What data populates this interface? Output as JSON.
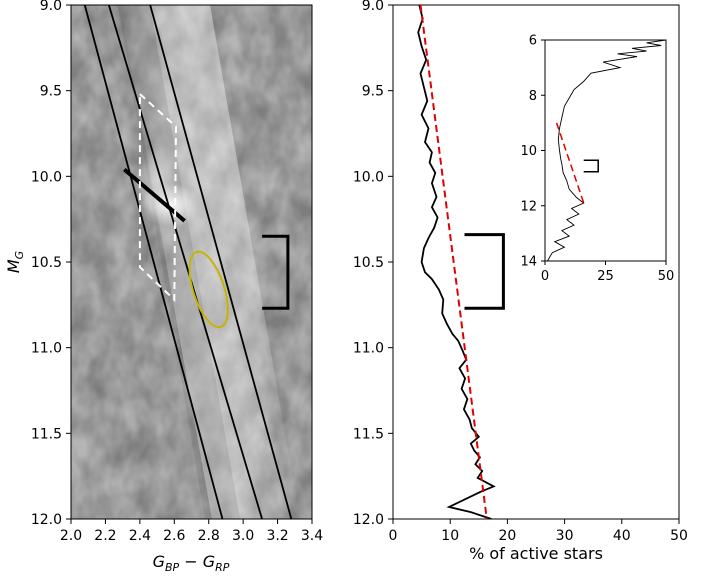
{
  "chart_data": [
    {
      "type": "image",
      "panel": "left",
      "xlabel": "G_BP − G_RP",
      "ylabel": "M_G",
      "xlim": [
        2.0,
        3.4
      ],
      "ylim": [
        12.0,
        9.0
      ],
      "xticks": [
        "2.0",
        "2.2",
        "2.4",
        "2.6",
        "2.8",
        "3.0",
        "3.2",
        "3.4"
      ],
      "yticks": [
        "9.0",
        "9.5",
        "10.0",
        "10.5",
        "11.0",
        "11.5",
        "12.0"
      ],
      "sequence_lines": [
        {
          "x0": 2.08,
          "y0": 9.0,
          "x1": 2.88,
          "y1": 12.0
        },
        {
          "x0": 2.22,
          "y0": 9.0,
          "x1": 3.11,
          "y1": 12.0
        },
        {
          "x0": 2.46,
          "y0": 9.0,
          "x1": 3.28,
          "y1": 12.0
        }
      ],
      "black_segment": {
        "x0": 2.31,
        "y0": 9.96,
        "x1": 2.66,
        "y1": 10.26
      },
      "dashed_region": [
        [
          2.4,
          9.52
        ],
        [
          2.61,
          9.71
        ],
        [
          2.6,
          10.72
        ],
        [
          2.4,
          10.53
        ]
      ],
      "ellipse": {
        "cx": 2.8,
        "cy": 10.66,
        "rx": 0.09,
        "ry": 0.23,
        "tilt_deg": -18,
        "color": "#c8b400"
      },
      "bracket": {
        "x_left": 3.11,
        "x_right": 3.26,
        "y_top": 10.35,
        "y_bottom": 10.77
      }
    },
    {
      "type": "line",
      "panel": "middle",
      "xlabel": "% of active stars",
      "ylabel": "",
      "xlim": [
        0,
        50
      ],
      "ylim": [
        12.0,
        9.0
      ],
      "xticks": [
        "0",
        "10",
        "20",
        "30",
        "40",
        "50"
      ],
      "yticks": [
        "9.0",
        "9.5",
        "10.0",
        "10.5",
        "11.0",
        "11.5",
        "12.0"
      ],
      "series": [
        {
          "color": "#000000",
          "points": [
            [
              4.6,
              9.0
            ],
            [
              5.2,
              9.08
            ],
            [
              4.4,
              9.16
            ],
            [
              5.0,
              9.24
            ],
            [
              5.8,
              9.32
            ],
            [
              4.8,
              9.4
            ],
            [
              5.4,
              9.48
            ],
            [
              6.0,
              9.56
            ],
            [
              5.0,
              9.64
            ],
            [
              6.2,
              9.72
            ],
            [
              5.6,
              9.8
            ],
            [
              6.8,
              9.86
            ],
            [
              6.4,
              9.92
            ],
            [
              7.4,
              9.98
            ],
            [
              6.8,
              10.04
            ],
            [
              7.6,
              10.12
            ],
            [
              6.8,
              10.18
            ],
            [
              7.8,
              10.24
            ],
            [
              7.2,
              10.3
            ],
            [
              6.2,
              10.36
            ],
            [
              5.4,
              10.42
            ],
            [
              5.0,
              10.5
            ],
            [
              5.6,
              10.56
            ],
            [
              6.8,
              10.6
            ],
            [
              8.0,
              10.66
            ],
            [
              8.8,
              10.72
            ],
            [
              8.6,
              10.8
            ],
            [
              9.4,
              10.86
            ],
            [
              10.4,
              10.92
            ],
            [
              11.4,
              10.96
            ],
            [
              12.2,
              11.02
            ],
            [
              12.8,
              11.07
            ],
            [
              11.6,
              11.12
            ],
            [
              12.6,
              11.18
            ],
            [
              12.0,
              11.24
            ],
            [
              13.0,
              11.3
            ],
            [
              12.4,
              11.36
            ],
            [
              13.4,
              11.42
            ],
            [
              13.8,
              11.47
            ],
            [
              15.0,
              11.52
            ],
            [
              13.6,
              11.56
            ],
            [
              14.2,
              11.6
            ],
            [
              15.2,
              11.64
            ],
            [
              14.4,
              11.68
            ],
            [
              15.6,
              11.72
            ],
            [
              14.8,
              11.76
            ],
            [
              17.6,
              11.81
            ],
            [
              15.4,
              11.84
            ],
            [
              9.8,
              11.93
            ],
            [
              13.6,
              11.96
            ],
            [
              17.2,
              12.0
            ]
          ]
        },
        {
          "color": "#e00000",
          "dashed": true,
          "points": [
            [
              4.8,
              9.0
            ],
            [
              16.4,
              12.0
            ]
          ]
        }
      ],
      "bracket": {
        "x_left": 12.5,
        "x_right": 19.3,
        "y_top": 10.34,
        "y_bottom": 10.77
      },
      "inset": {
        "type": "line",
        "xlim": [
          0,
          50
        ],
        "ylim": [
          14,
          6
        ],
        "xticks": [
          "0",
          "25",
          "50"
        ],
        "yticks": [
          "6",
          "8",
          "10",
          "12",
          "14"
        ],
        "series": [
          {
            "color": "#000000",
            "points": [
              [
                50,
                6.0
              ],
              [
                42,
                6.1
              ],
              [
                48,
                6.2
              ],
              [
                36,
                6.3
              ],
              [
                42,
                6.4
              ],
              [
                30,
                6.5
              ],
              [
                38,
                6.6
              ],
              [
                24,
                6.8
              ],
              [
                31,
                7.0
              ],
              [
                19,
                7.2
              ],
              [
                16,
                7.5
              ],
              [
                12,
                7.8
              ],
              [
                10,
                8.1
              ],
              [
                8,
                8.4
              ],
              [
                7,
                8.8
              ],
              [
                6,
                9.2
              ],
              [
                5.5,
                9.6
              ],
              [
                6,
                10.0
              ],
              [
                6.5,
                10.3
              ],
              [
                7,
                10.5
              ],
              [
                7.5,
                10.8
              ],
              [
                9,
                11.1
              ],
              [
                10,
                11.4
              ],
              [
                13,
                11.7
              ],
              [
                16,
                11.9
              ],
              [
                11,
                12.1
              ],
              [
                14,
                12.3
              ],
              [
                9,
                12.5
              ],
              [
                12,
                12.7
              ],
              [
                7,
                12.9
              ],
              [
                10,
                13.1
              ],
              [
                4,
                13.3
              ],
              [
                8,
                13.5
              ],
              [
                3,
                13.7
              ],
              [
                1,
                14.0
              ]
            ]
          },
          {
            "color": "#e00000",
            "dashed": true,
            "points": [
              [
                4.8,
                9.0
              ],
              [
                16.4,
                12.0
              ]
            ]
          }
        ],
        "bracket": {
          "x_left": 16,
          "x_right": 22,
          "y_top": 10.35,
          "y_bottom": 10.77
        }
      }
    }
  ]
}
